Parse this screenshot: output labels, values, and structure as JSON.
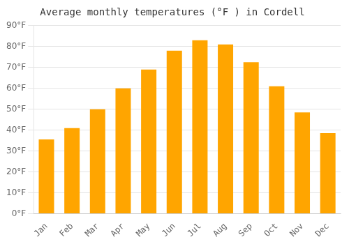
{
  "chart_data": {
    "type": "bar",
    "title": "Average monthly temperatures (°F ) in Cordell",
    "categories": [
      "Jan",
      "Feb",
      "Mar",
      "Apr",
      "May",
      "Jun",
      "Jul",
      "Aug",
      "Sep",
      "Oct",
      "Nov",
      "Dec"
    ],
    "values": [
      35.5,
      41.0,
      50.0,
      60.0,
      69.0,
      78.0,
      83.0,
      81.0,
      72.5,
      61.0,
      48.5,
      38.5
    ],
    "color": "#FFA500",
    "ylim": [
      0,
      90
    ],
    "yticks": [
      {
        "value": 0,
        "label": "0°F"
      },
      {
        "value": 10,
        "label": "10°F"
      },
      {
        "value": 20,
        "label": "20°F"
      },
      {
        "value": 30,
        "label": "30°F"
      },
      {
        "value": 40,
        "label": "40°F"
      },
      {
        "value": 50,
        "label": "50°F"
      },
      {
        "value": 60,
        "label": "60°F"
      },
      {
        "value": 70,
        "label": "70°F"
      },
      {
        "value": 80,
        "label": "80°F"
      },
      {
        "value": 90,
        "label": "90°F"
      }
    ],
    "grid": true
  }
}
